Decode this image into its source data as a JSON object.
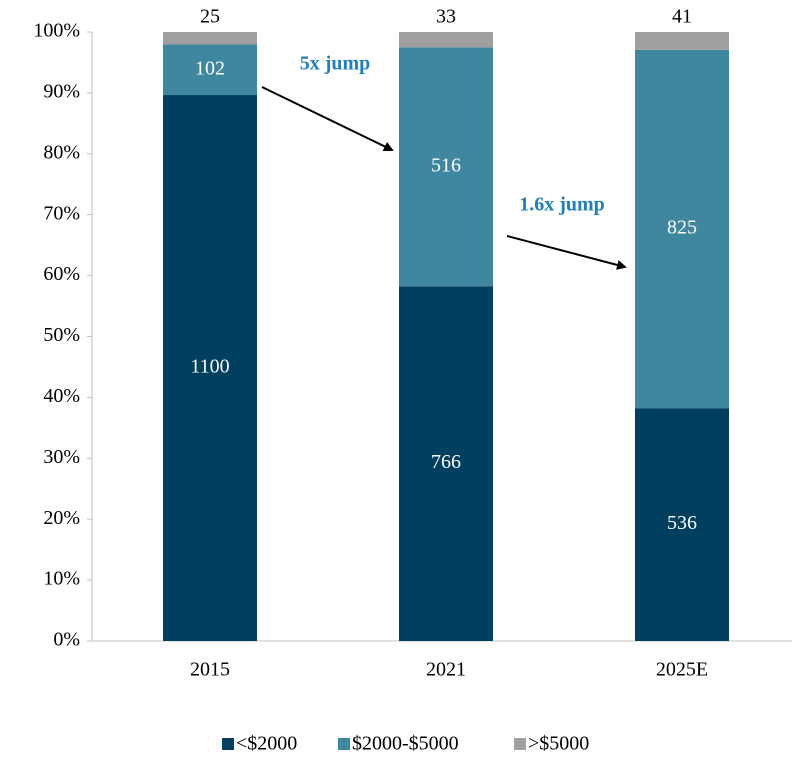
{
  "chart_data": {
    "type": "bar",
    "stacking": "percent",
    "categories": [
      "2015",
      "2021",
      "2025E"
    ],
    "series": [
      {
        "name": "<$2000",
        "color": "#003f5f",
        "values": [
          1100,
          766,
          536
        ]
      },
      {
        "name": "$2000-$5000",
        "color": "#3f879f",
        "values": [
          102,
          516,
          825
        ]
      },
      {
        "name": ">$5000",
        "color": "#a0a0a0",
        "values": [
          25,
          33,
          41
        ]
      }
    ],
    "ylim": [
      0,
      100
    ],
    "yticks": [
      {
        "value": 0,
        "label": "0%"
      },
      {
        "value": 10,
        "label": "10%"
      },
      {
        "value": 20,
        "label": "20%"
      },
      {
        "value": 30,
        "label": "30%"
      },
      {
        "value": 40,
        "label": "40%"
      },
      {
        "value": 50,
        "label": "50%"
      },
      {
        "value": 60,
        "label": "60%"
      },
      {
        "value": 70,
        "label": "70%"
      },
      {
        "value": 80,
        "label": "80%"
      },
      {
        "value": 90,
        "label": "90%"
      },
      {
        "value": 100,
        "label": "100%"
      }
    ],
    "annotations": [
      "5x jump",
      "1.6x jump"
    ],
    "legend": "bottom"
  }
}
